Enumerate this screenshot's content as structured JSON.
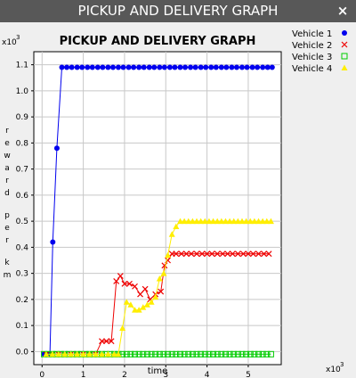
{
  "window": {
    "title": "PICKUP AND DELIVERY GRAPH",
    "close_glyph": "×"
  },
  "chart_data": {
    "type": "line",
    "title": "PICKUP AND DELIVERY GRAPH",
    "xlabel": "time",
    "ylabel": "reward per km",
    "x_multiplier": "x10",
    "x_multiplier_exp": "3",
    "y_multiplier": "x10",
    "y_multiplier_exp": "3",
    "xlim": [
      -0.2,
      5.8
    ],
    "ylim": [
      -0.05,
      1.15
    ],
    "x_ticks": [
      0,
      1,
      2,
      3,
      4,
      5
    ],
    "y_ticks": [
      0.0,
      0.1,
      0.2,
      0.3,
      0.4,
      0.5,
      0.6,
      0.7,
      0.8,
      0.9,
      1.0,
      1.1
    ],
    "y_tick_labels": [
      "0.0",
      "0.1",
      "0.2",
      "0.3",
      "0.4",
      "0.5",
      "0.6",
      "0.7",
      "0.8",
      "0.9",
      "1.0",
      "1.1"
    ],
    "grid": true,
    "legend_position": "right",
    "series": [
      {
        "name": "Vehicle 1",
        "color": "#0000ee",
        "marker": "circle",
        "x": [
          0.05,
          0.12,
          0.19,
          0.26,
          0.36,
          0.48,
          0.6,
          0.72,
          0.85,
          0.97,
          1.1,
          1.22,
          1.35,
          1.47,
          1.6,
          1.72,
          1.85,
          1.97,
          2.1,
          2.22,
          2.35,
          2.47,
          2.6,
          2.72,
          2.85,
          2.97,
          3.1,
          3.22,
          3.35,
          3.47,
          3.6,
          3.72,
          3.85,
          3.97,
          4.1,
          4.22,
          4.35,
          4.47,
          4.6,
          4.72,
          4.85,
          4.97,
          5.1,
          5.22,
          5.35,
          5.47,
          5.58
        ],
        "y": [
          -0.01,
          -0.01,
          -0.01,
          0.42,
          0.78,
          1.09,
          1.09,
          1.09,
          1.09,
          1.09,
          1.09,
          1.09,
          1.09,
          1.09,
          1.09,
          1.09,
          1.09,
          1.09,
          1.09,
          1.09,
          1.09,
          1.09,
          1.09,
          1.09,
          1.09,
          1.09,
          1.09,
          1.09,
          1.09,
          1.09,
          1.09,
          1.09,
          1.09,
          1.09,
          1.09,
          1.09,
          1.09,
          1.09,
          1.09,
          1.09,
          1.09,
          1.09,
          1.09,
          1.09,
          1.09,
          1.09,
          1.09
        ]
      },
      {
        "name": "Vehicle 2",
        "color": "#ee0000",
        "marker": "x",
        "x": [
          0.1,
          0.25,
          0.4,
          0.55,
          0.7,
          0.85,
          1.0,
          1.15,
          1.3,
          1.45,
          1.56,
          1.68,
          1.8,
          1.9,
          2.0,
          2.12,
          2.25,
          2.38,
          2.5,
          2.62,
          2.75,
          2.88,
          2.97,
          3.05,
          3.15,
          3.25,
          3.38,
          3.5,
          3.62,
          3.75,
          3.88,
          4.0,
          4.12,
          4.25,
          4.38,
          4.5,
          4.62,
          4.75,
          4.88,
          5.0,
          5.12,
          5.25,
          5.38,
          5.5
        ],
        "y": [
          -0.01,
          -0.01,
          -0.01,
          -0.01,
          -0.01,
          -0.01,
          -0.01,
          -0.01,
          -0.01,
          0.04,
          0.04,
          0.04,
          0.27,
          0.29,
          0.26,
          0.26,
          0.25,
          0.22,
          0.24,
          0.2,
          0.22,
          0.23,
          0.33,
          0.35,
          0.375,
          0.375,
          0.375,
          0.375,
          0.375,
          0.375,
          0.375,
          0.375,
          0.375,
          0.375,
          0.375,
          0.375,
          0.375,
          0.375,
          0.375,
          0.375,
          0.375,
          0.375,
          0.375,
          0.375
        ]
      },
      {
        "name": "Vehicle 3",
        "color": "#00cc00",
        "marker": "square",
        "x": [
          0.05,
          0.15,
          0.25,
          0.35,
          0.45,
          0.55,
          0.65,
          0.75,
          0.85,
          0.95,
          1.05,
          1.15,
          1.25,
          1.35,
          1.45,
          1.55,
          1.65,
          1.75,
          1.85,
          1.95,
          2.05,
          2.15,
          2.25,
          2.35,
          2.45,
          2.55,
          2.65,
          2.75,
          2.85,
          2.95,
          3.05,
          3.15,
          3.25,
          3.35,
          3.45,
          3.55,
          3.65,
          3.75,
          3.85,
          3.95,
          4.05,
          4.15,
          4.25,
          4.35,
          4.45,
          4.55,
          4.65,
          4.75,
          4.85,
          4.95,
          5.05,
          5.15,
          5.25,
          5.35,
          5.45,
          5.55
        ],
        "y": [
          -0.01,
          -0.01,
          -0.01,
          -0.01,
          -0.01,
          -0.01,
          -0.01,
          -0.01,
          -0.01,
          -0.01,
          -0.01,
          -0.01,
          -0.01,
          -0.01,
          -0.01,
          -0.01,
          -0.01,
          -0.01,
          -0.01,
          -0.01,
          -0.01,
          -0.01,
          -0.01,
          -0.01,
          -0.01,
          -0.01,
          -0.01,
          -0.01,
          -0.01,
          -0.01,
          -0.01,
          -0.01,
          -0.01,
          -0.01,
          -0.01,
          -0.01,
          -0.01,
          -0.01,
          -0.01,
          -0.01,
          -0.01,
          -0.01,
          -0.01,
          -0.01,
          -0.01,
          -0.01,
          -0.01,
          -0.01,
          -0.01,
          -0.01,
          -0.01,
          -0.01,
          -0.01,
          -0.01,
          -0.01,
          -0.01
        ]
      },
      {
        "name": "Vehicle 4",
        "color": "#ffee00",
        "marker": "triangle",
        "x": [
          0.1,
          0.25,
          0.4,
          0.55,
          0.7,
          0.85,
          1.0,
          1.15,
          1.3,
          1.45,
          1.6,
          1.75,
          1.85,
          1.95,
          2.05,
          2.15,
          2.25,
          2.35,
          2.45,
          2.55,
          2.65,
          2.75,
          2.85,
          2.95,
          3.05,
          3.15,
          3.25,
          3.35,
          3.45,
          3.55,
          3.65,
          3.75,
          3.85,
          3.95,
          4.05,
          4.15,
          4.25,
          4.35,
          4.45,
          4.55,
          4.65,
          4.75,
          4.85,
          4.95,
          5.05,
          5.15,
          5.25,
          5.35,
          5.45,
          5.55
        ],
        "y": [
          -0.01,
          -0.01,
          -0.01,
          -0.01,
          -0.01,
          -0.01,
          -0.01,
          -0.01,
          -0.01,
          -0.01,
          -0.01,
          -0.01,
          -0.01,
          0.09,
          0.19,
          0.18,
          0.16,
          0.16,
          0.17,
          0.18,
          0.19,
          0.21,
          0.28,
          0.3,
          0.37,
          0.45,
          0.48,
          0.5,
          0.5,
          0.5,
          0.5,
          0.5,
          0.5,
          0.5,
          0.5,
          0.5,
          0.5,
          0.5,
          0.5,
          0.5,
          0.5,
          0.5,
          0.5,
          0.5,
          0.5,
          0.5,
          0.5,
          0.5,
          0.5,
          0.5
        ]
      }
    ]
  }
}
